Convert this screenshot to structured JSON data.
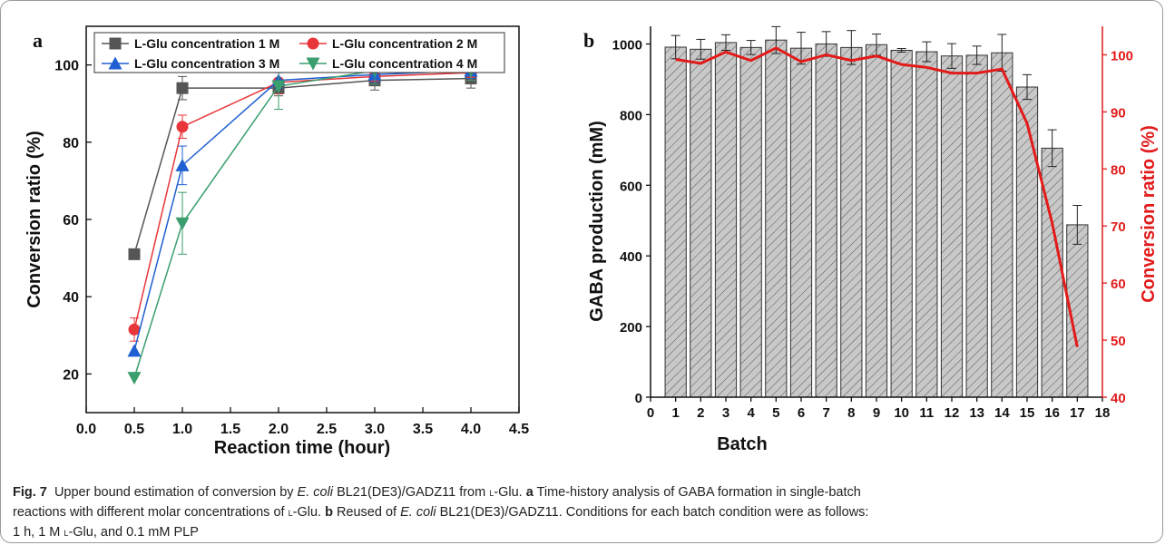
{
  "panels": {
    "a_label": "a",
    "b_label": "b"
  },
  "caption": {
    "fig_label": "Fig. 7",
    "line1_a": "Upper bound estimation of conversion by ",
    "ecoli": "E. coli",
    "line1_b": " BL21(DE3)/GADZ11 from ",
    "l_prefix": "l",
    "line1_c": "-Glu. ",
    "a": "a",
    "line1_d": " Time-history analysis of GABA formation in single-batch",
    "line2_a": "reactions with different molar concentrations of ",
    "line2_b": "-Glu. ",
    "b": "b",
    "line2_c": " Reused of ",
    "line2_d": " BL21(DE3)/GADZ11. Conditions for each batch condition were as follows:",
    "line3_a": "1 h, 1 M ",
    "line3_b": "-Glu, and 0.1 mM PLP"
  },
  "chart_data": [
    {
      "type": "line",
      "xlabel": "Reaction time (hour)",
      "ylabel": "Conversion ratio (%)",
      "xlim": [
        0.0,
        4.5
      ],
      "ylim": [
        10,
        110
      ],
      "xticks": [
        "0.0",
        "0.5",
        "1.0",
        "1.5",
        "2.0",
        "2.5",
        "3.0",
        "3.5",
        "4.0",
        "4.5"
      ],
      "yticks": [
        "20",
        "40",
        "60",
        "80",
        "100"
      ],
      "legend_position": "top",
      "x": [
        0.5,
        1.0,
        2.0,
        3.0,
        4.0
      ],
      "series": [
        {
          "name": "L-Glu concentration 1 M",
          "color": "#555555",
          "marker": "square",
          "values": [
            51,
            94,
            94,
            96,
            96.5
          ],
          "errors": [
            0,
            3,
            2,
            2.5,
            2.5
          ]
        },
        {
          "name": "L-Glu concentration 2 M",
          "color": "#e8363a",
          "marker": "circle",
          "values": [
            31.5,
            84,
            95.5,
            97,
            98
          ],
          "errors": [
            3,
            3,
            3,
            2,
            2
          ]
        },
        {
          "name": "L-Glu concentration 3 M",
          "color": "#1f5fd1",
          "marker": "triangle-up",
          "values": [
            26,
            74,
            96,
            97.5,
            98.5
          ],
          "errors": [
            0,
            5,
            2,
            2,
            2
          ]
        },
        {
          "name": "L-Glu concentration 4 M",
          "color": "#3a9e6e",
          "marker": "triangle-down",
          "values": [
            19,
            59,
            94.5,
            98.5,
            98.5
          ],
          "errors": [
            0,
            8,
            6,
            3.5,
            2.5
          ]
        }
      ]
    },
    {
      "type": "bar",
      "xlabel": "Batch",
      "ylabel": "GABA production (mM)",
      "ylabel2": "Conversion ratio (%)",
      "xlim": [
        0,
        18
      ],
      "ylim": [
        0,
        1050
      ],
      "y2lim": [
        40,
        105
      ],
      "xticks": [
        "0",
        "1",
        "2",
        "3",
        "4",
        "5",
        "6",
        "7",
        "8",
        "9",
        "10",
        "11",
        "12",
        "13",
        "14",
        "15",
        "16",
        "17",
        "18"
      ],
      "yticks": [
        "0",
        "200",
        "400",
        "600",
        "800",
        "1000"
      ],
      "y2ticks": [
        "40",
        "50",
        "60",
        "70",
        "80",
        "90",
        "100"
      ],
      "bar_color": "#c8c8c8",
      "line_color": "#e31a1a",
      "categories": [
        "1",
        "2",
        "3",
        "4",
        "5",
        "6",
        "7",
        "8",
        "9",
        "10",
        "11",
        "12",
        "13",
        "14",
        "15",
        "16",
        "17"
      ],
      "series": [
        {
          "name": "GABA production (mM)",
          "values": [
            991,
            985,
            1004,
            990,
            1011,
            988,
            1000,
            990,
            998,
            982,
            978,
            966,
            968,
            975,
            878,
            705,
            488
          ],
          "errors": [
            33,
            28,
            22,
            20,
            38,
            45,
            35,
            48,
            30,
            5,
            28,
            35,
            26,
            52,
            35,
            52,
            55
          ]
        },
        {
          "name": "Conversion ratio (%)",
          "values": [
            99.2,
            98.5,
            100.5,
            99,
            101.2,
            98.8,
            100,
            99,
            99.8,
            98.3,
            97.8,
            96.8,
            96.8,
            97.5,
            88,
            70.5,
            48.8
          ]
        }
      ]
    }
  ]
}
